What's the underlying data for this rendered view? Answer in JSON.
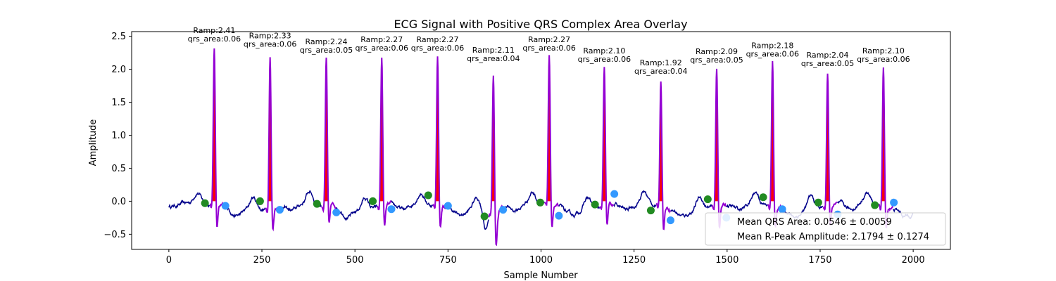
{
  "chart_data": {
    "type": "line",
    "title": "ECG Signal with Positive QRS Complex Area Overlay",
    "xlabel": "Sample Number",
    "ylabel": "Amplitude",
    "xlim": [
      -100,
      2100
    ],
    "ylim": [
      -0.73,
      2.57
    ],
    "xticks": [
      0,
      250,
      500,
      750,
      1000,
      1250,
      1500,
      1750,
      2000
    ],
    "yticks": [
      -0.5,
      0.0,
      0.5,
      1.0,
      1.5,
      2.0,
      2.5
    ],
    "ytick_labels": [
      "−0.5",
      "0.0",
      "0.5",
      "1.0",
      "1.5",
      "2.0",
      "2.5"
    ],
    "grid": false,
    "colors": {
      "signal": "#00008b",
      "qrs_line": "#9400d3",
      "qrs_fill": "#ff0000",
      "q_marker": "#228b22",
      "s_marker": "#3399ff"
    },
    "beats": [
      {
        "r_sample": 122,
        "r_amp": 2.41,
        "label1": "Ramp:2.41",
        "label2": "qrs_area:0.06",
        "q_sample": 97,
        "q_amp": -0.03,
        "s_sample": 152,
        "s_amp": -0.07
      },
      {
        "r_sample": 272,
        "r_amp": 2.33,
        "label1": "Ramp:2.33",
        "label2": "qrs_area:0.06",
        "q_sample": 245,
        "q_amp": 0.0,
        "s_sample": 298,
        "s_amp": -0.13
      },
      {
        "r_sample": 423,
        "r_amp": 2.24,
        "label1": "Ramp:2.24",
        "label2": "qrs_area:0.05",
        "q_sample": 398,
        "q_amp": -0.04,
        "s_sample": 450,
        "s_amp": -0.17
      },
      {
        "r_sample": 572,
        "r_amp": 2.27,
        "label1": "Ramp:2.27",
        "label2": "qrs_area:0.06",
        "q_sample": 548,
        "q_amp": 0.0,
        "s_sample": 598,
        "s_amp": -0.12
      },
      {
        "r_sample": 722,
        "r_amp": 2.27,
        "label1": "Ramp:2.27",
        "label2": "qrs_area:0.06",
        "q_sample": 697,
        "q_amp": 0.09,
        "s_sample": 750,
        "s_amp": -0.07
      },
      {
        "r_sample": 872,
        "r_amp": 2.11,
        "label1": "Ramp:2.11",
        "label2": "qrs_area:0.04",
        "q_sample": 848,
        "q_amp": -0.23,
        "s_sample": 898,
        "s_amp": -0.13
      },
      {
        "r_sample": 1022,
        "r_amp": 2.27,
        "label1": "Ramp:2.27",
        "label2": "qrs_area:0.06",
        "q_sample": 998,
        "q_amp": -0.02,
        "s_sample": 1048,
        "s_amp": -0.22
      },
      {
        "r_sample": 1170,
        "r_amp": 2.1,
        "label1": "Ramp:2.10",
        "label2": "qrs_area:0.06",
        "q_sample": 1145,
        "q_amp": -0.05,
        "s_sample": 1197,
        "s_amp": 0.11
      },
      {
        "r_sample": 1322,
        "r_amp": 1.92,
        "label1": "Ramp:1.92",
        "label2": "qrs_area:0.04",
        "q_sample": 1295,
        "q_amp": -0.14,
        "s_sample": 1348,
        "s_amp": -0.29
      },
      {
        "r_sample": 1472,
        "r_amp": 2.09,
        "label1": "Ramp:2.09",
        "label2": "qrs_area:0.05",
        "q_sample": 1448,
        "q_amp": 0.03,
        "s_sample": 1498,
        "s_amp": -0.25
      },
      {
        "r_sample": 1622,
        "r_amp": 2.18,
        "label1": "Ramp:2.18",
        "label2": "qrs_area:0.06",
        "q_sample": 1597,
        "q_amp": 0.06,
        "s_sample": 1648,
        "s_amp": -0.12
      },
      {
        "r_sample": 1770,
        "r_amp": 2.04,
        "label1": "Ramp:2.04",
        "label2": "qrs_area:0.05",
        "q_sample": 1745,
        "q_amp": -0.02,
        "s_sample": 1797,
        "s_amp": -0.2
      },
      {
        "r_sample": 1920,
        "r_amp": 2.1,
        "label1": "Ramp:2.10",
        "label2": "qrs_area:0.06",
        "q_sample": 1897,
        "q_amp": -0.06,
        "s_sample": 1948,
        "s_amp": -0.02
      }
    ],
    "legend": {
      "placement": "lower-right",
      "entries": [
        "Mean QRS Area: 0.0546 ± 0.0059",
        "Mean R-Peak Amplitude: 2.1794 ± 0.1274"
      ]
    }
  }
}
